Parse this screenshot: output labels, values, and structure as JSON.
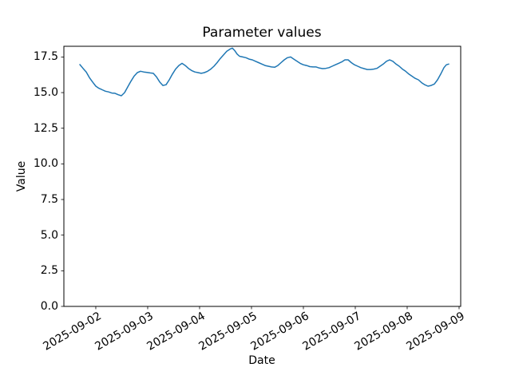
{
  "figure": {
    "title": "Parameter values",
    "xlabel": "Date",
    "ylabel": "Value"
  },
  "chart_data": {
    "type": "line",
    "title": "Parameter values",
    "xlabel": "Date",
    "ylabel": "Value",
    "grid": false,
    "legend": null,
    "line_color": "#1f77b4",
    "line_width": 1.5,
    "spine_color": "#000000",
    "background": "#ffffff",
    "x_axis": {
      "unit": "days since 2025-09-02 00:00",
      "tick_offsets_days": [
        0,
        1,
        2,
        3,
        4,
        5,
        6,
        7
      ],
      "tick_labels": [
        "2025-09-02",
        "2025-09-03",
        "2025-09-04",
        "2025-09-05",
        "2025-09-06",
        "2025-09-07",
        "2025-09-08",
        "2025-09-09"
      ],
      "tick_label_rotation_deg": 30,
      "xlim_days": [
        -0.615,
        7.031
      ]
    },
    "y_axis": {
      "tick_values": [
        0.0,
        2.5,
        5.0,
        7.5,
        10.0,
        12.5,
        15.0,
        17.5
      ],
      "tick_labels": [
        "0.0",
        "2.5",
        "5.0",
        "7.5",
        "10.0",
        "12.5",
        "15.0",
        "17.5"
      ],
      "ylim": [
        0,
        18.25
      ]
    },
    "series": [
      {
        "name": "parameter-values",
        "x_days": [
          -0.308,
          -0.246,
          -0.185,
          -0.123,
          -0.062,
          0.0,
          0.062,
          0.123,
          0.185,
          0.246,
          0.308,
          0.369,
          0.431,
          0.492,
          0.554,
          0.615,
          0.677,
          0.738,
          0.8,
          0.862,
          0.923,
          0.985,
          1.046,
          1.108,
          1.169,
          1.231,
          1.292,
          1.354,
          1.415,
          1.477,
          1.538,
          1.6,
          1.662,
          1.723,
          1.785,
          1.846,
          1.908,
          1.969,
          2.031,
          2.092,
          2.154,
          2.215,
          2.277,
          2.338,
          2.4,
          2.462,
          2.523,
          2.585,
          2.631,
          2.677,
          2.723,
          2.769,
          2.831,
          2.892,
          2.954,
          3.015,
          3.077,
          3.138,
          3.2,
          3.262,
          3.323,
          3.385,
          3.446,
          3.508,
          3.569,
          3.631,
          3.692,
          3.754,
          3.815,
          3.877,
          3.938,
          4.0,
          4.062,
          4.123,
          4.185,
          4.246,
          4.308,
          4.369,
          4.431,
          4.492,
          4.554,
          4.615,
          4.677,
          4.738,
          4.8,
          4.862,
          4.923,
          4.985,
          5.046,
          5.108,
          5.169,
          5.231,
          5.292,
          5.354,
          5.415,
          5.477,
          5.538,
          5.6,
          5.662,
          5.723,
          5.785,
          5.846,
          5.908,
          5.969,
          6.031,
          6.092,
          6.154,
          6.215,
          6.277,
          6.338,
          6.4,
          6.462,
          6.523,
          6.585,
          6.646,
          6.708,
          6.754,
          6.8
        ],
        "values": [
          16.97,
          16.7,
          16.45,
          16.05,
          15.75,
          15.45,
          15.3,
          15.2,
          15.1,
          15.05,
          14.97,
          14.95,
          14.85,
          14.78,
          15.0,
          15.4,
          15.8,
          16.15,
          16.4,
          16.5,
          16.45,
          16.42,
          16.38,
          16.35,
          16.1,
          15.75,
          15.5,
          15.55,
          15.9,
          16.3,
          16.65,
          16.9,
          17.05,
          16.9,
          16.7,
          16.55,
          16.45,
          16.4,
          16.35,
          16.4,
          16.5,
          16.65,
          16.85,
          17.1,
          17.4,
          17.65,
          17.9,
          18.05,
          18.12,
          17.95,
          17.7,
          17.55,
          17.5,
          17.45,
          17.35,
          17.3,
          17.2,
          17.1,
          17.0,
          16.9,
          16.85,
          16.8,
          16.78,
          16.9,
          17.1,
          17.3,
          17.45,
          17.5,
          17.35,
          17.2,
          17.05,
          16.95,
          16.9,
          16.82,
          16.8,
          16.8,
          16.72,
          16.68,
          16.7,
          16.75,
          16.85,
          16.95,
          17.05,
          17.15,
          17.3,
          17.3,
          17.1,
          16.95,
          16.85,
          16.75,
          16.68,
          16.62,
          16.62,
          16.65,
          16.7,
          16.85,
          17.0,
          17.2,
          17.3,
          17.2,
          17.0,
          16.85,
          16.65,
          16.5,
          16.3,
          16.15,
          16.0,
          15.9,
          15.7,
          15.55,
          15.45,
          15.5,
          15.6,
          15.9,
          16.3,
          16.75,
          16.95,
          17.0
        ]
      }
    ]
  }
}
